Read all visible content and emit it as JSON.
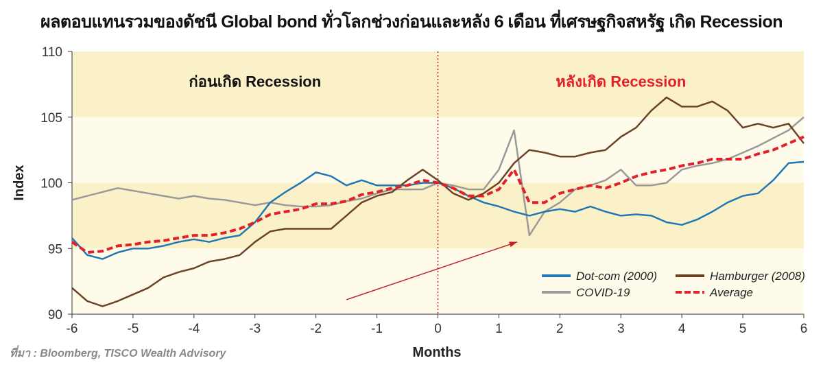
{
  "title": "ผลตอบแทนรวมของดัชนี Global bond ทั่วโลกช่วงก่อนและหลัง 6 เดือน ที่เศรษฐกิจสหรัฐ เกิด Recession",
  "source": "ที่มา : Bloomberg, TISCO Wealth Advisory",
  "chart_data": {
    "type": "line",
    "title": "ผลตอบแทนรวมของดัชนี Global bond ทั่วโลกช่วงก่อนและหลัง 6 เดือน ที่เศรษฐกิจสหรัฐ เกิด Recession",
    "xlabel": "Months",
    "ylabel": "Index",
    "xlim": [
      -6,
      6
    ],
    "ylim": [
      90,
      110
    ],
    "xticks": [
      -6,
      -5,
      -4,
      -3,
      -2,
      -1,
      0,
      1,
      2,
      3,
      4,
      5,
      6
    ],
    "yticks": [
      90,
      95,
      100,
      105,
      110
    ],
    "grid": false,
    "band_colors": [
      "#fbf1c9",
      "#fefbea"
    ],
    "legend_placement": "bottom-right",
    "annotations": [
      {
        "text": "ก่อนเกิด Recession",
        "x": -3,
        "y": 107.3,
        "color": "#111111"
      },
      {
        "text": "หลังเกิด Recession",
        "x": 3,
        "y": 107.3,
        "color": "#e3202a"
      }
    ],
    "vline": {
      "x": 0,
      "color": "#c0202a",
      "style": "dotted"
    },
    "arrow": {
      "from": [
        -1.5,
        91.1
      ],
      "to": [
        1.3,
        95.5
      ],
      "color": "#c0202a"
    },
    "x": [
      -6,
      -5.75,
      -5.5,
      -5.25,
      -5,
      -4.75,
      -4.5,
      -4.25,
      -4,
      -3.75,
      -3.5,
      -3.25,
      -3,
      -2.75,
      -2.5,
      -2.25,
      -2,
      -1.75,
      -1.5,
      -1.25,
      -1,
      -0.75,
      -0.5,
      -0.25,
      0,
      0.25,
      0.5,
      0.75,
      1,
      1.25,
      1.5,
      1.75,
      2,
      2.25,
      2.5,
      2.75,
      3,
      3.25,
      3.5,
      3.75,
      4,
      4.25,
      4.5,
      4.75,
      5,
      5.25,
      5.5,
      5.75,
      6
    ],
    "series": [
      {
        "name": "Dot-com (2000)",
        "color": "#1f77b4",
        "style": "solid",
        "values": [
          95.8,
          94.5,
          94.2,
          94.7,
          95,
          95,
          95.2,
          95.5,
          95.7,
          95.5,
          95.8,
          96,
          97,
          98.5,
          99.3,
          100,
          100.8,
          100.5,
          99.8,
          100.2,
          99.8,
          99.8,
          99.8,
          100,
          100,
          99.6,
          99,
          98.5,
          98.2,
          97.8,
          97.5,
          97.8,
          98,
          97.8,
          98.2,
          97.8,
          97.5,
          97.6,
          97.5,
          97,
          96.8,
          97.2,
          97.8,
          98.5,
          99,
          99.2,
          100.2,
          101.5,
          101.6
        ]
      },
      {
        "name": "Hamburger (2008)",
        "color": "#6b4226",
        "style": "solid",
        "values": [
          92,
          91,
          90.6,
          91,
          91.5,
          92,
          92.8,
          93.2,
          93.5,
          94,
          94.2,
          94.5,
          95.5,
          96.3,
          96.5,
          96.5,
          96.5,
          96.5,
          97.5,
          98.5,
          99,
          99.3,
          100.2,
          101,
          100.2,
          99.2,
          98.7,
          99.2,
          100,
          101.5,
          102.5,
          102.3,
          102,
          102,
          102.3,
          102.5,
          103.5,
          104.2,
          105.5,
          106.5,
          105.8,
          105.8,
          106.2,
          105.5,
          104.2,
          104.5,
          104.2,
          104.5,
          103
        ]
      },
      {
        "name": "COVID-19",
        "color": "#999999",
        "style": "solid",
        "values": [
          98.7,
          99,
          99.3,
          99.6,
          99.4,
          99.2,
          99,
          98.8,
          99,
          98.8,
          98.7,
          98.5,
          98.3,
          98.5,
          98.3,
          98.2,
          98.2,
          98.3,
          98.6,
          98.8,
          99.2,
          99.5,
          99.5,
          99.5,
          100,
          99.8,
          99.5,
          99.5,
          101,
          104,
          96,
          97.8,
          98.5,
          99.5,
          99.8,
          100.2,
          101,
          99.8,
          99.8,
          100,
          101,
          101.3,
          101.5,
          101.8,
          102.3,
          102.8,
          103.4,
          104,
          105
        ]
      },
      {
        "name": "Average",
        "color": "#e3202a",
        "style": "dashed",
        "values": [
          95.5,
          94.7,
          94.8,
          95.2,
          95.3,
          95.5,
          95.6,
          95.8,
          96,
          96,
          96.2,
          96.5,
          97,
          97.6,
          97.8,
          98,
          98.4,
          98.4,
          98.6,
          99.1,
          99.3,
          99.6,
          99.8,
          100.2,
          100,
          99.6,
          99,
          99,
          99.5,
          101,
          98.5,
          98.5,
          99.2,
          99.5,
          99.8,
          99.6,
          100,
          100.5,
          100.8,
          101,
          101.3,
          101.5,
          101.8,
          101.8,
          101.8,
          102.2,
          102.5,
          103,
          103.5
        ]
      }
    ]
  }
}
